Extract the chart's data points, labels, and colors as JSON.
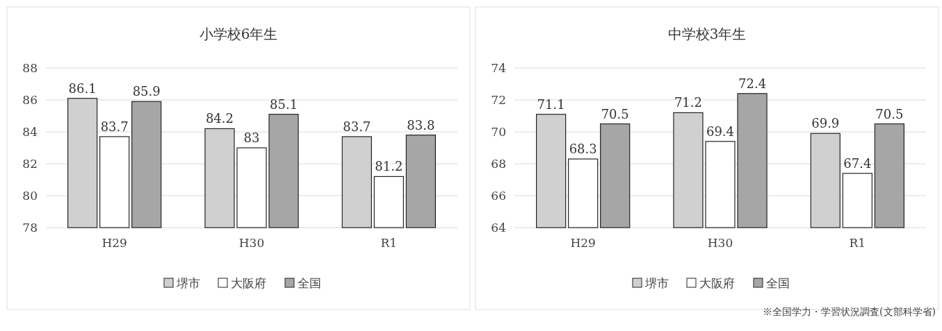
{
  "chart_data": [
    {
      "type": "bar",
      "title": "小学校6年生",
      "categories": [
        "H29",
        "H30",
        "R1"
      ],
      "series": [
        {
          "name": "堺市",
          "color": "#d0d0d0",
          "values": [
            86.1,
            84.2,
            83.7
          ]
        },
        {
          "name": "大阪府",
          "color": "#ffffff",
          "values": [
            83.7,
            83,
            81.2
          ]
        },
        {
          "name": "全国",
          "color": "#a6a6a6",
          "values": [
            85.9,
            85.1,
            83.8
          ]
        }
      ],
      "ylim": [
        78,
        88
      ],
      "yticks": [
        78,
        80,
        82,
        84,
        86,
        88
      ],
      "grid": "y",
      "legend": "bottom",
      "data_labels": true
    },
    {
      "type": "bar",
      "title": "中学校3年生",
      "categories": [
        "H29",
        "H30",
        "R1"
      ],
      "series": [
        {
          "name": "堺市",
          "color": "#d0d0d0",
          "values": [
            71.1,
            71.2,
            69.9
          ]
        },
        {
          "name": "大阪府",
          "color": "#ffffff",
          "values": [
            68.3,
            69.4,
            67.4
          ]
        },
        {
          "name": "全国",
          "color": "#a6a6a6",
          "values": [
            70.5,
            72.4,
            70.5
          ]
        }
      ],
      "ylim": [
        64,
        74
      ],
      "yticks": [
        64,
        66,
        68,
        70,
        72,
        74
      ],
      "grid": "y",
      "legend": "bottom",
      "data_labels": true,
      "annotations": [
        "※全国学力・学習状況調査(文部科学省)"
      ]
    }
  ]
}
